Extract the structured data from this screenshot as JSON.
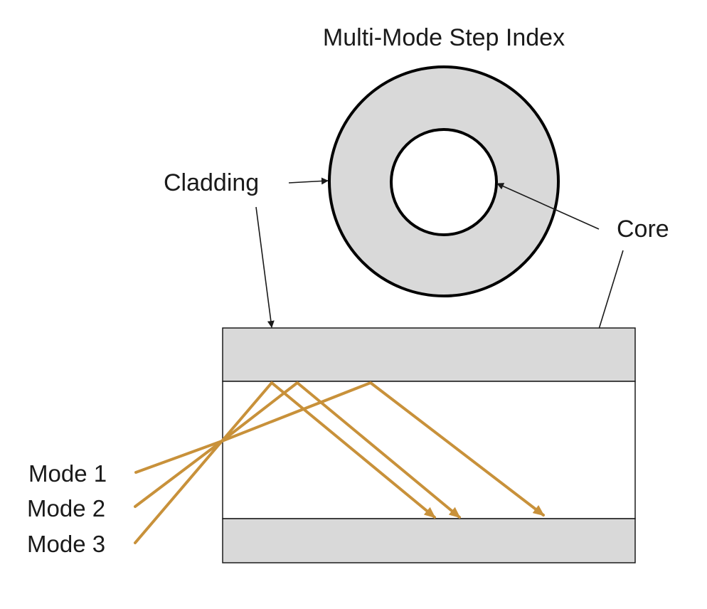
{
  "title": "Multi-Mode Step Index",
  "labels": {
    "cladding": "Cladding",
    "core": "Core"
  },
  "modes": [
    "Mode 1",
    "Mode 2",
    "Mode 3"
  ],
  "colors": {
    "cladding_fill": "#d9d9d9",
    "core_fill": "#ffffff",
    "outline": "#000000",
    "ray": "#c8913a",
    "pointer": "#1a1a1a"
  }
}
